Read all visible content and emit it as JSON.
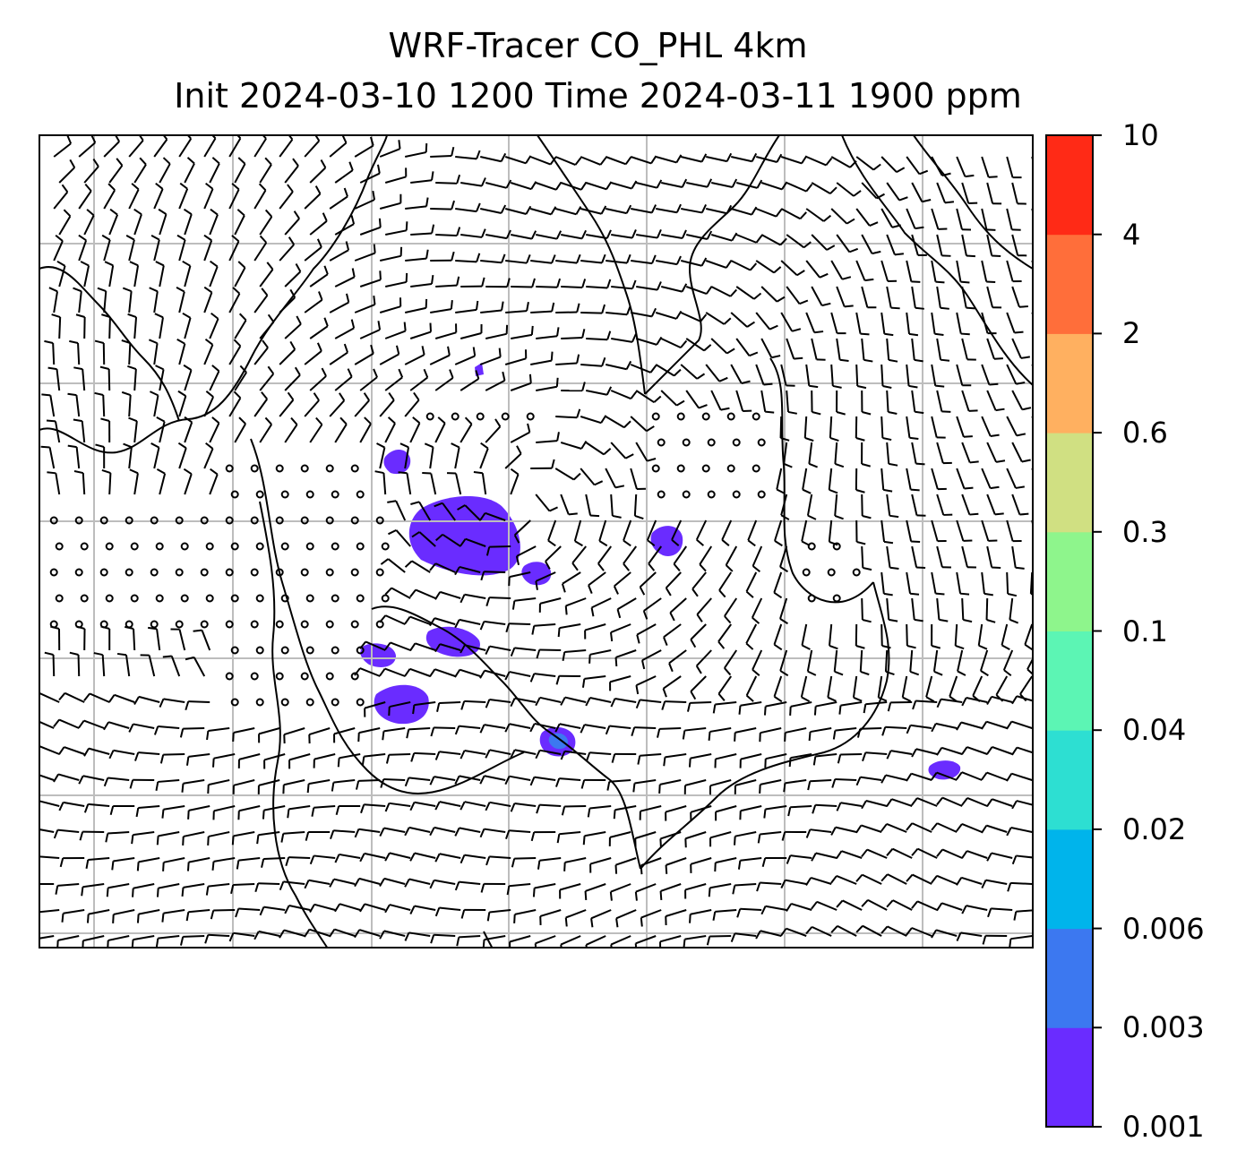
{
  "title": {
    "line1": "WRF-Tracer CO_PHL 4km",
    "line2": "Init 2024-03-10 1200 Time 2024-03-11 1900 ppm"
  },
  "colorbar": {
    "ticks": [
      "0.001",
      "0.003",
      "0.006",
      "0.02",
      "0.04",
      "0.1",
      "0.3",
      "0.6",
      "2",
      "4",
      "10"
    ],
    "colors": [
      "#6a2cff",
      "#3c78f0",
      "#00b4eb",
      "#2ddfd2",
      "#5cf5b4",
      "#8ef58c",
      "#d0e082",
      "#ffb060",
      "#ff6e3a",
      "#ff2a16"
    ]
  },
  "map": {
    "grid": true,
    "coastline_color": "#000000",
    "wind_barb_color": "#000000",
    "gridline_color": "#bdbdbd",
    "tracer_color_dominant": "#6a2cff"
  }
}
